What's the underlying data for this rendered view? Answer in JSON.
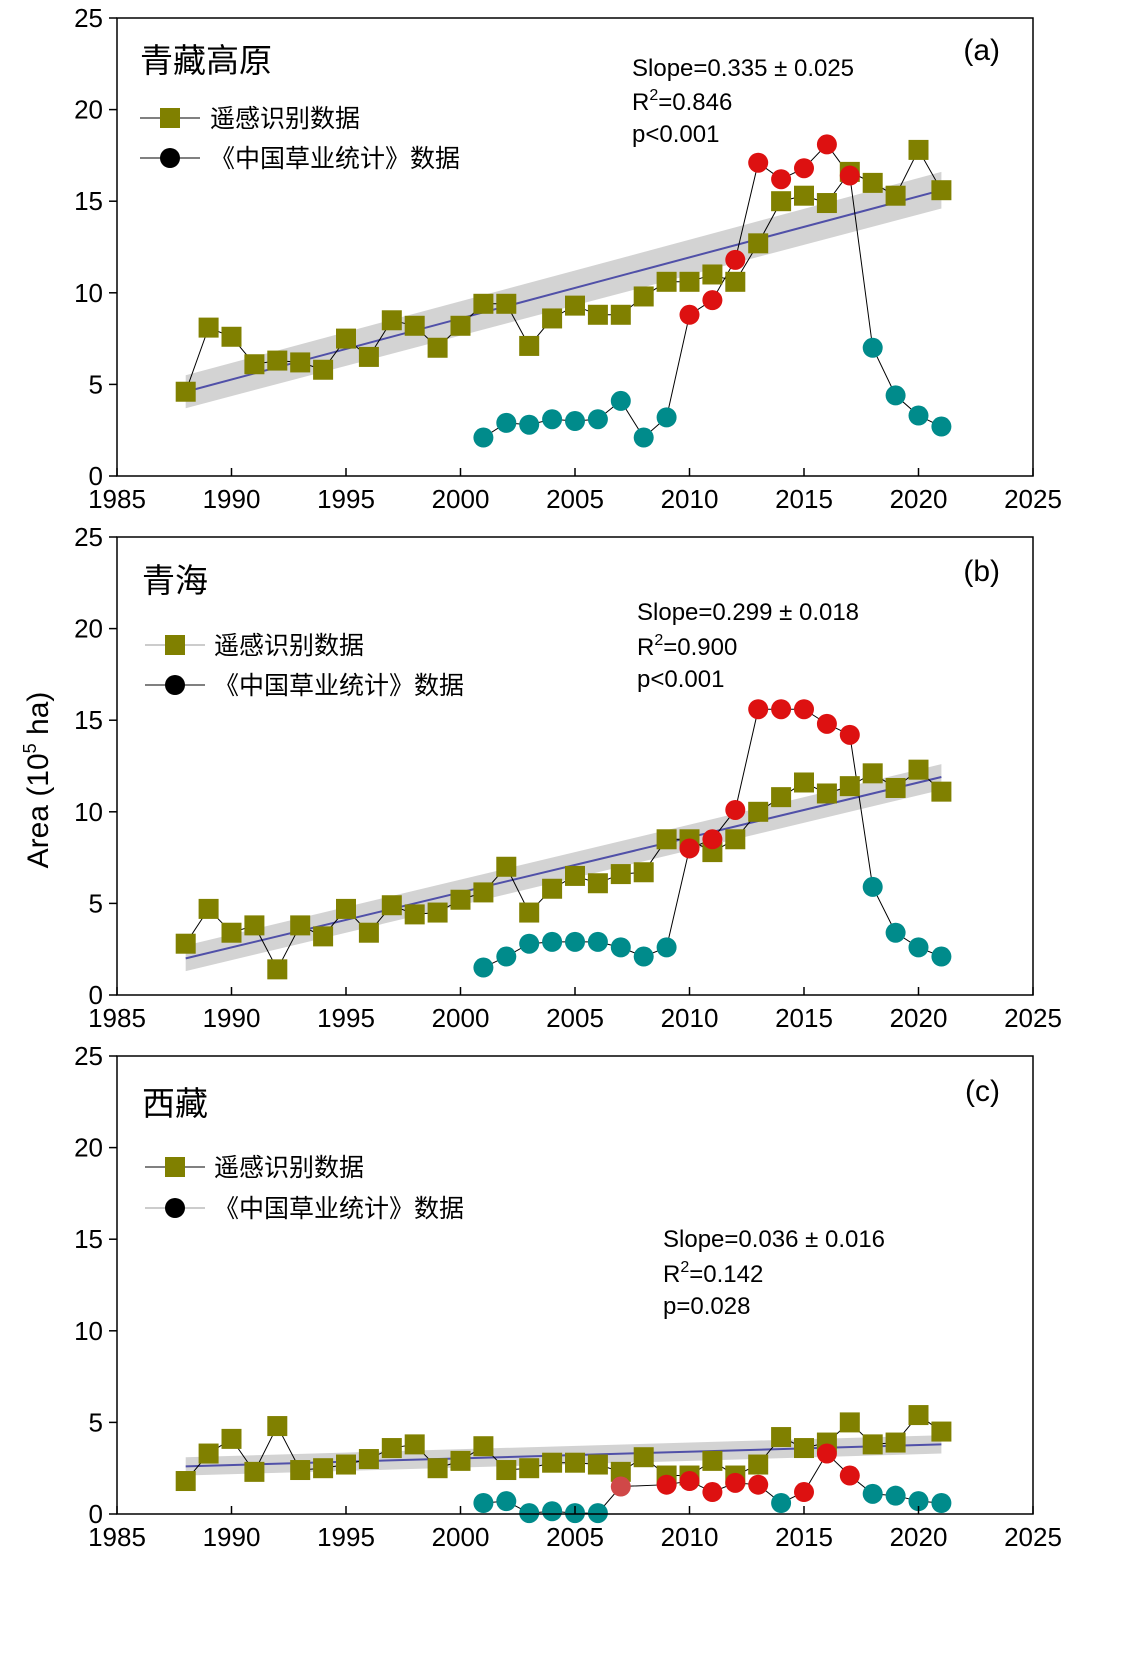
{
  "chart_data": {
    "type": "scatter",
    "y_axis_label": {
      "prefix": "Area (10",
      "sup": "5",
      "suffix": " ha)"
    },
    "colors": {
      "remote": "#808000",
      "stat_low": "#008B8B",
      "stat_high": "#DD1111",
      "stat_mid": "#D04848",
      "fit": "#5050A8",
      "band": "#C8C8C8"
    },
    "panels": [
      {
        "id": "a",
        "title": "青藏高原",
        "letter": "(a)",
        "xlim": [
          1985,
          2025
        ],
        "ylim": [
          0,
          25
        ],
        "xticks": [
          1985,
          1990,
          1995,
          2000,
          2005,
          2010,
          2015,
          2020,
          2025
        ],
        "yticks": [
          0,
          5,
          10,
          15,
          20,
          25
        ],
        "legend": {
          "series1": "遥感识别数据",
          "series2": "《中国草业统计》数据"
        },
        "stats": {
          "slope": "Slope=0.335 ± 0.025",
          "r2_prefix": "R",
          "r2_sup": "2",
          "r2_value": "=0.846",
          "p": "p<0.001"
        },
        "fit": {
          "x": [
            1988,
            2021
          ],
          "y": [
            4.6,
            15.6
          ],
          "band_halfwidth": [
            0.9,
            1.0
          ]
        },
        "series": [
          {
            "name": "遥感识别数据",
            "marker": "square",
            "x": [
              1988,
              1989,
              1990,
              1991,
              1992,
              1993,
              1994,
              1995,
              1996,
              1997,
              1998,
              1999,
              2000,
              2001,
              2002,
              2003,
              2004,
              2005,
              2006,
              2007,
              2008,
              2009,
              2010,
              2011,
              2012,
              2013,
              2014,
              2015,
              2016,
              2017,
              2018,
              2019,
              2020,
              2021
            ],
            "y": [
              4.6,
              8.1,
              7.6,
              6.1,
              6.3,
              6.2,
              5.8,
              7.5,
              6.5,
              8.5,
              8.2,
              7.0,
              8.2,
              9.4,
              9.4,
              7.1,
              8.6,
              9.3,
              8.8,
              8.8,
              9.8,
              10.6,
              10.6,
              11.0,
              10.6,
              12.7,
              15.0,
              15.3,
              14.9,
              16.6,
              16.0,
              15.3,
              17.8,
              15.6
            ]
          },
          {
            "name": "《中国草业统计》数据",
            "marker": "circle",
            "x": [
              2001,
              2002,
              2003,
              2004,
              2005,
              2006,
              2007,
              2008,
              2009,
              2010,
              2011,
              2012,
              2013,
              2014,
              2015,
              2016,
              2017,
              2018,
              2019,
              2020,
              2021
            ],
            "y": [
              2.1,
              2.9,
              2.8,
              3.1,
              3.0,
              3.1,
              4.1,
              2.1,
              3.2,
              8.8,
              9.6,
              11.8,
              17.1,
              16.2,
              16.8,
              18.1,
              16.4,
              7.0,
              4.4,
              3.3,
              2.7
            ],
            "level": [
              "low",
              "low",
              "low",
              "low",
              "low",
              "low",
              "low",
              "low",
              "low",
              "high",
              "high",
              "high",
              "high",
              "high",
              "high",
              "high",
              "high",
              "low",
              "low",
              "low",
              "low"
            ]
          }
        ]
      },
      {
        "id": "b",
        "title": "青海",
        "letter": "(b)",
        "xlim": [
          1985,
          2025
        ],
        "ylim": [
          0,
          25
        ],
        "xticks": [
          1985,
          1990,
          1995,
          2000,
          2005,
          2010,
          2015,
          2020,
          2025
        ],
        "yticks": [
          0,
          5,
          10,
          15,
          20,
          25
        ],
        "legend": {
          "series1": "遥感识别数据",
          "series2": "《中国草业统计》数据"
        },
        "stats": {
          "slope": "Slope=0.299 ± 0.018",
          "r2_prefix": "R",
          "r2_sup": "2",
          "r2_value": "=0.900",
          "p": "p<0.001"
        },
        "fit": {
          "x": [
            1988,
            2021
          ],
          "y": [
            2.0,
            11.9
          ],
          "band_halfwidth": [
            0.7,
            0.7
          ]
        },
        "series": [
          {
            "name": "遥感识别数据",
            "marker": "square",
            "x": [
              1988,
              1989,
              1990,
              1991,
              1992,
              1993,
              1994,
              1995,
              1996,
              1997,
              1998,
              1999,
              2000,
              2001,
              2002,
              2003,
              2004,
              2005,
              2006,
              2007,
              2008,
              2009,
              2010,
              2011,
              2012,
              2013,
              2014,
              2015,
              2016,
              2017,
              2018,
              2019,
              2020,
              2021
            ],
            "y": [
              2.8,
              4.7,
              3.4,
              3.8,
              1.4,
              3.8,
              3.2,
              4.7,
              3.4,
              4.9,
              4.4,
              4.5,
              5.2,
              5.6,
              7.0,
              4.5,
              5.8,
              6.5,
              6.1,
              6.6,
              6.7,
              8.5,
              8.5,
              7.8,
              8.5,
              10.0,
              10.8,
              11.6,
              11.0,
              11.4,
              12.1,
              11.3,
              12.3,
              11.1
            ]
          },
          {
            "name": "《中国草业统计》数据",
            "marker": "circle",
            "x": [
              2001,
              2002,
              2003,
              2004,
              2005,
              2006,
              2007,
              2008,
              2009,
              2010,
              2011,
              2012,
              2013,
              2014,
              2015,
              2016,
              2017,
              2018,
              2019,
              2020,
              2021
            ],
            "y": [
              1.5,
              2.1,
              2.8,
              2.9,
              2.9,
              2.9,
              2.6,
              2.1,
              2.6,
              8.0,
              8.5,
              10.1,
              15.6,
              15.6,
              15.6,
              14.8,
              14.2,
              5.9,
              3.4,
              2.6,
              2.1
            ],
            "level": [
              "low",
              "low",
              "low",
              "low",
              "low",
              "low",
              "low",
              "low",
              "low",
              "high",
              "high",
              "high",
              "high",
              "high",
              "high",
              "high",
              "high",
              "low",
              "low",
              "low",
              "low"
            ]
          }
        ]
      },
      {
        "id": "c",
        "title": "西藏",
        "letter": "(c)",
        "xlim": [
          1985,
          2025
        ],
        "ylim": [
          0,
          25
        ],
        "xticks": [
          1985,
          1990,
          1995,
          2000,
          2005,
          2010,
          2015,
          2020,
          2025
        ],
        "yticks": [
          0,
          5,
          10,
          15,
          20,
          25
        ],
        "legend": {
          "series1": "遥感识别数据",
          "series2": "《中国草业统计》数据"
        },
        "stats": {
          "slope": "Slope=0.036 ± 0.016",
          "r2_prefix": "R",
          "r2_sup": "2",
          "r2_value": "=0.142",
          "p": "p=0.028"
        },
        "fit": {
          "x": [
            1988,
            2021
          ],
          "y": [
            2.6,
            3.8
          ],
          "band_halfwidth": [
            0.5,
            0.5
          ]
        },
        "series": [
          {
            "name": "遥感识别数据",
            "marker": "square",
            "x": [
              1988,
              1989,
              1990,
              1991,
              1992,
              1993,
              1994,
              1995,
              1996,
              1997,
              1998,
              1999,
              2000,
              2001,
              2002,
              2003,
              2004,
              2005,
              2006,
              2007,
              2008,
              2009,
              2010,
              2011,
              2012,
              2013,
              2014,
              2015,
              2016,
              2017,
              2018,
              2019,
              2020,
              2021
            ],
            "y": [
              1.8,
              3.3,
              4.1,
              2.3,
              4.8,
              2.4,
              2.5,
              2.7,
              3.0,
              3.6,
              3.8,
              2.5,
              2.9,
              3.7,
              2.4,
              2.5,
              2.8,
              2.8,
              2.7,
              2.3,
              3.1,
              2.1,
              2.1,
              2.9,
              2.1,
              2.7,
              4.2,
              3.6,
              3.9,
              5.0,
              3.8,
              3.9,
              5.4,
              4.5
            ]
          },
          {
            "name": "《中国草业统计》数据",
            "marker": "circle",
            "x": [
              2001,
              2002,
              2003,
              2004,
              2005,
              2006,
              2007,
              2009,
              2010,
              2011,
              2012,
              2013,
              2014,
              2015,
              2016,
              2017,
              2018,
              2019,
              2020,
              2021
            ],
            "y": [
              0.6,
              0.7,
              0.05,
              0.15,
              0.05,
              0.05,
              1.5,
              1.6,
              1.8,
              1.2,
              1.7,
              1.6,
              0.6,
              1.2,
              3.3,
              2.1,
              1.1,
              1.0,
              0.7,
              0.6
            ],
            "level": [
              "low",
              "low",
              "low",
              "low",
              "low",
              "low",
              "mid",
              "high",
              "high",
              "high",
              "high",
              "high",
              "low",
              "high",
              "high",
              "high",
              "low",
              "low",
              "low",
              "low"
            ]
          }
        ]
      }
    ]
  }
}
